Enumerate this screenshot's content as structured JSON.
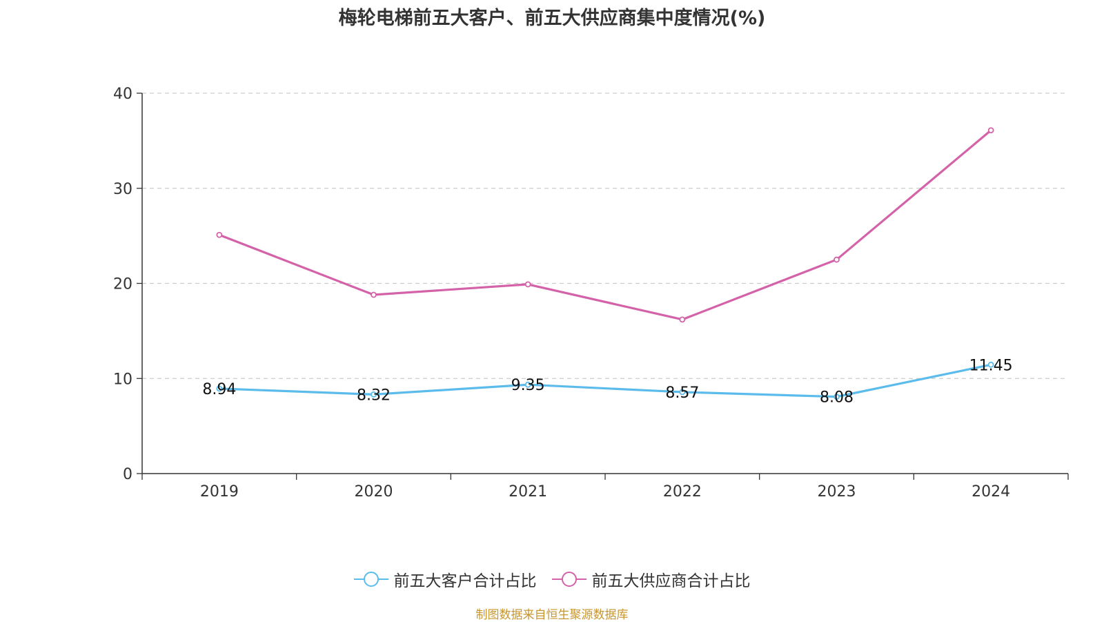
{
  "chart_data": {
    "type": "line",
    "title": "梅轮电梯前五大客户、前五大供应商集中度情况(%)",
    "categories": [
      "2019",
      "2020",
      "2021",
      "2022",
      "2023",
      "2024"
    ],
    "series": [
      {
        "name": "前五大客户合计占比",
        "color": "#5bbcec",
        "values": [
          8.94,
          8.32,
          9.35,
          8.57,
          8.08,
          11.45
        ],
        "labels": [
          "8.94",
          "8.32",
          "9.35",
          "8.57",
          "8.08",
          "11.45"
        ],
        "show_labels": true
      },
      {
        "name": "前五大供应商合计占比",
        "color": "#d462a8",
        "values": [
          25.1,
          18.8,
          19.9,
          16.2,
          22.5,
          36.1
        ],
        "show_labels": false
      }
    ],
    "ylim": [
      0,
      40
    ],
    "yticks": [
      "0",
      "10",
      "20",
      "30",
      "40"
    ],
    "xlabel": "",
    "ylabel": "",
    "grid": true,
    "legend_position": "bottom"
  },
  "source_note": "制图数据来自恒生聚源数据库"
}
